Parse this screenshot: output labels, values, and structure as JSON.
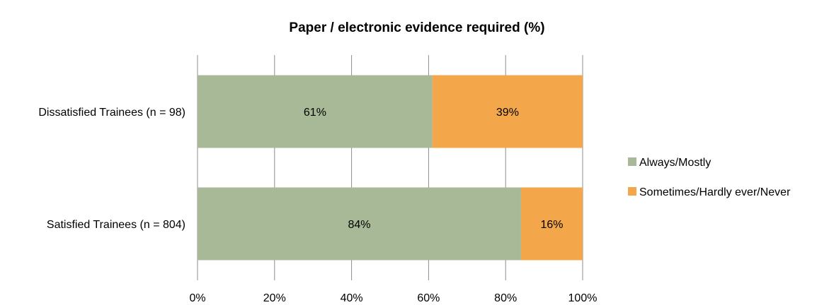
{
  "chart_data": {
    "type": "bar",
    "orientation": "horizontal",
    "stacked": true,
    "title": "Paper / electronic evidence required (%)",
    "categories": [
      "Dissatisfied Trainees (n = 98)",
      "Satisfied Trainees (n = 804)"
    ],
    "series": [
      {
        "name": "Always/Mostly",
        "color": "#a7b996",
        "values": [
          61,
          84
        ],
        "labels": [
          "61%",
          "84%"
        ]
      },
      {
        "name": "Sometimes/Hardly ever/Never",
        "color": "#f3a64a",
        "values": [
          39,
          16
        ],
        "labels": [
          "39%",
          "16%"
        ]
      }
    ],
    "xlim": [
      0,
      100
    ],
    "xticks": [
      0,
      20,
      40,
      60,
      80,
      100
    ],
    "xtick_labels": [
      "0%",
      "20%",
      "40%",
      "60%",
      "80%",
      "100%"
    ],
    "grid": true,
    "legend_position": "right"
  }
}
